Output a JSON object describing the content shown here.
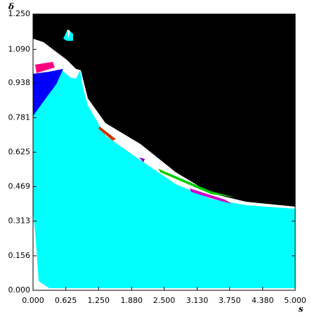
{
  "chart_data": {
    "type": "region-map",
    "x_label": "s",
    "y_label": "δ",
    "xlim": [
      0,
      5
    ],
    "ylim": [
      0,
      1.25
    ],
    "xticks": [
      {
        "value": 0,
        "label": "0.000"
      },
      {
        "value": 0.625,
        "label": "0.625"
      },
      {
        "value": 1.25,
        "label": "1.250"
      },
      {
        "value": 1.88,
        "label": "1.880"
      },
      {
        "value": 2.5,
        "label": "2.500"
      },
      {
        "value": 3.13,
        "label": "3.130"
      },
      {
        "value": 3.75,
        "label": "3.750"
      },
      {
        "value": 4.38,
        "label": "4.380"
      },
      {
        "value": 5,
        "label": "5.000"
      }
    ],
    "yticks": [
      {
        "value": 0,
        "label": "0.000"
      },
      {
        "value": 0.156,
        "label": "0.156"
      },
      {
        "value": 0.313,
        "label": "0.313"
      },
      {
        "value": 0.469,
        "label": "0.469"
      },
      {
        "value": 0.625,
        "label": "0.625"
      },
      {
        "value": 0.781,
        "label": "0.781"
      },
      {
        "value": 0.938,
        "label": "0.938"
      },
      {
        "value": 1.09,
        "label": "1.090"
      },
      {
        "value": 1.25,
        "label": "1.250"
      }
    ],
    "grid": false
  }
}
